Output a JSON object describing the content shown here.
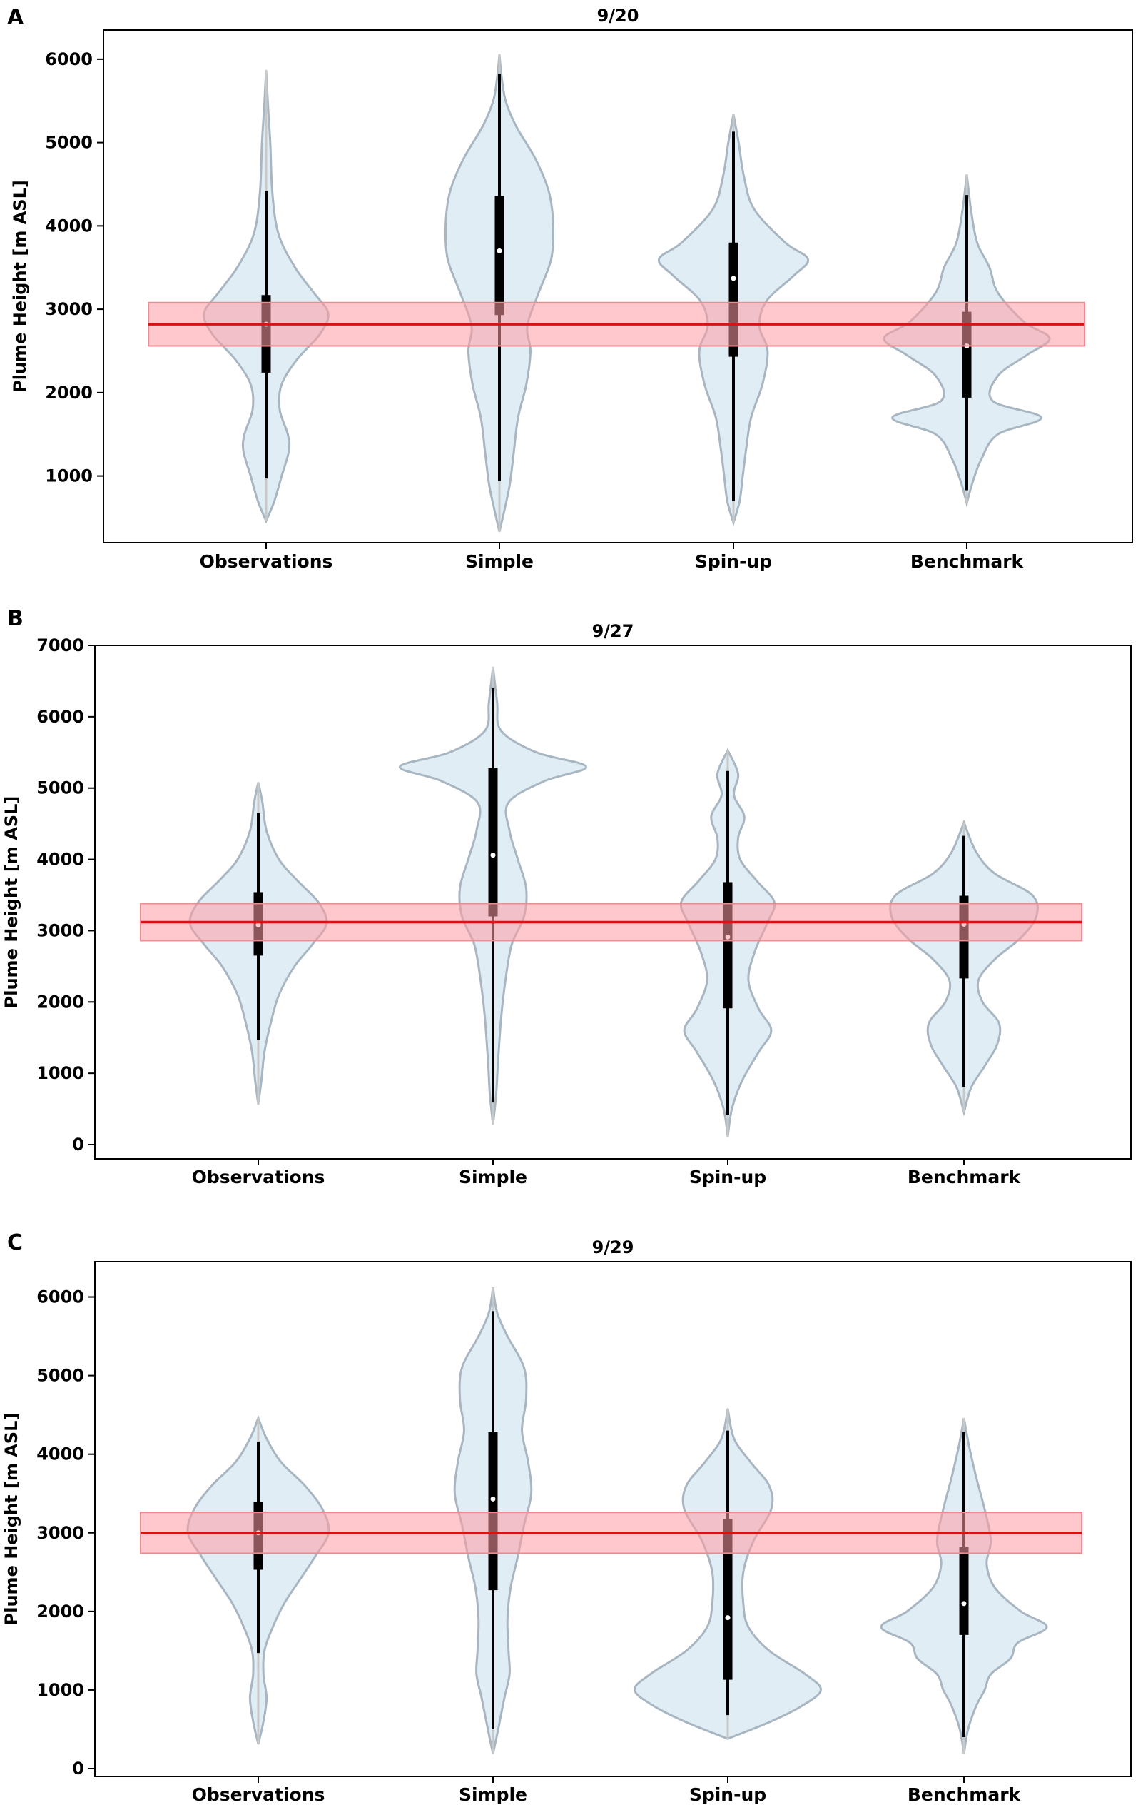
{
  "chart_data": [
    {
      "type": "violin",
      "panel_label": "A",
      "title": "9/20",
      "ylabel": "Plume Height [m ASL]",
      "xlabel": "",
      "ylim": [
        200,
        6350
      ],
      "yticks": [
        1000,
        2000,
        3000,
        4000,
        5000,
        6000
      ],
      "categories": [
        "Observations",
        "Simple",
        "Spin-up",
        "Benchmark"
      ],
      "reference": {
        "value": 2820,
        "band": [
          2560,
          3080
        ],
        "color": "#dd1111",
        "band_color": "#ff9aa2"
      },
      "violins": [
        {
          "name": "Observations",
          "extent": [
            460,
            5870
          ],
          "whisker": [
            970,
            4420
          ],
          "q1": 2240,
          "median": 2820,
          "q3": 3170,
          "density": [
            [
              460,
              0
            ],
            [
              700,
              0.08
            ],
            [
              1000,
              0.15
            ],
            [
              1300,
              0.22
            ],
            [
              1500,
              0.21
            ],
            [
              1800,
              0.13
            ],
            [
              2100,
              0.15
            ],
            [
              2400,
              0.3
            ],
            [
              2700,
              0.52
            ],
            [
              2950,
              0.6
            ],
            [
              3200,
              0.46
            ],
            [
              3500,
              0.28
            ],
            [
              3900,
              0.12
            ],
            [
              4400,
              0.06
            ],
            [
              5000,
              0.04
            ],
            [
              5400,
              0.02
            ],
            [
              5870,
              0
            ]
          ]
        },
        {
          "name": "Simple",
          "extent": [
            330,
            6060
          ],
          "whisker": [
            940,
            5820
          ],
          "q1": 2930,
          "median": 3700,
          "q3": 4360,
          "density": [
            [
              330,
              0
            ],
            [
              600,
              0.05
            ],
            [
              900,
              0.1
            ],
            [
              1300,
              0.14
            ],
            [
              1700,
              0.18
            ],
            [
              2100,
              0.26
            ],
            [
              2500,
              0.3
            ],
            [
              2800,
              0.27
            ],
            [
              3200,
              0.38
            ],
            [
              3600,
              0.5
            ],
            [
              4000,
              0.52
            ],
            [
              4400,
              0.48
            ],
            [
              4800,
              0.35
            ],
            [
              5200,
              0.16
            ],
            [
              5500,
              0.06
            ],
            [
              5800,
              0.02
            ],
            [
              6060,
              0
            ]
          ]
        },
        {
          "name": "Spin-up",
          "extent": [
            440,
            5340
          ],
          "whisker": [
            700,
            5130
          ],
          "q1": 2430,
          "median": 3370,
          "q3": 3800,
          "density": [
            [
              440,
              0
            ],
            [
              700,
              0.06
            ],
            [
              1000,
              0.09
            ],
            [
              1300,
              0.12
            ],
            [
              1700,
              0.17
            ],
            [
              2100,
              0.28
            ],
            [
              2500,
              0.33
            ],
            [
              2800,
              0.25
            ],
            [
              3100,
              0.32
            ],
            [
              3400,
              0.58
            ],
            [
              3600,
              0.72
            ],
            [
              3800,
              0.5
            ],
            [
              4200,
              0.2
            ],
            [
              4600,
              0.1
            ],
            [
              5000,
              0.05
            ],
            [
              5340,
              0
            ]
          ]
        },
        {
          "name": "Benchmark",
          "extent": [
            670,
            4620
          ],
          "whisker": [
            830,
            4370
          ],
          "q1": 1940,
          "median": 2560,
          "q3": 2970,
          "density": [
            [
              670,
              0
            ],
            [
              900,
              0.05
            ],
            [
              1200,
              0.14
            ],
            [
              1500,
              0.3
            ],
            [
              1700,
              0.72
            ],
            [
              1900,
              0.25
            ],
            [
              2200,
              0.3
            ],
            [
              2450,
              0.58
            ],
            [
              2650,
              0.8
            ],
            [
              2850,
              0.55
            ],
            [
              3200,
              0.3
            ],
            [
              3500,
              0.22
            ],
            [
              3800,
              0.1
            ],
            [
              4200,
              0.04
            ],
            [
              4620,
              0
            ]
          ]
        }
      ]
    },
    {
      "type": "violin",
      "panel_label": "B",
      "title": "9/27",
      "ylabel": "Plume Height [m ASL]",
      "xlabel": "",
      "ylim": [
        -200,
        7000
      ],
      "yticks": [
        0,
        1000,
        2000,
        3000,
        4000,
        5000,
        6000,
        7000
      ],
      "categories": [
        "Observations",
        "Simple",
        "Spin-up",
        "Benchmark"
      ],
      "reference": {
        "value": 3120,
        "band": [
          2860,
          3380
        ],
        "color": "#dd1111",
        "band_color": "#ff9aa2"
      },
      "violins": [
        {
          "name": "Observations",
          "extent": [
            560,
            5080
          ],
          "whisker": [
            1470,
            4650
          ],
          "q1": 2650,
          "median": 3080,
          "q3": 3540,
          "density": [
            [
              560,
              0
            ],
            [
              900,
              0.03
            ],
            [
              1300,
              0.06
            ],
            [
              1700,
              0.12
            ],
            [
              2100,
              0.2
            ],
            [
              2500,
              0.35
            ],
            [
              2800,
              0.52
            ],
            [
              3100,
              0.66
            ],
            [
              3400,
              0.58
            ],
            [
              3700,
              0.38
            ],
            [
              4000,
              0.2
            ],
            [
              4400,
              0.08
            ],
            [
              4800,
              0.04
            ],
            [
              5080,
              0
            ]
          ]
        },
        {
          "name": "Simple",
          "extent": [
            280,
            6700
          ],
          "whisker": [
            590,
            6400
          ],
          "q1": 3200,
          "median": 4060,
          "q3": 5280,
          "density": [
            [
              280,
              0
            ],
            [
              700,
              0.03
            ],
            [
              1200,
              0.05
            ],
            [
              1800,
              0.08
            ],
            [
              2300,
              0.12
            ],
            [
              2800,
              0.18
            ],
            [
              3200,
              0.3
            ],
            [
              3600,
              0.32
            ],
            [
              4000,
              0.24
            ],
            [
              4400,
              0.16
            ],
            [
              4800,
              0.15
            ],
            [
              5100,
              0.5
            ],
            [
              5300,
              0.9
            ],
            [
              5500,
              0.42
            ],
            [
              5800,
              0.08
            ],
            [
              6200,
              0.04
            ],
            [
              6700,
              0
            ]
          ]
        },
        {
          "name": "Spin-up",
          "extent": [
            110,
            5530
          ],
          "whisker": [
            420,
            5240
          ],
          "q1": 1910,
          "median": 2910,
          "q3": 3680,
          "density": [
            [
              110,
              0
            ],
            [
              500,
              0.04
            ],
            [
              900,
              0.14
            ],
            [
              1300,
              0.3
            ],
            [
              1600,
              0.42
            ],
            [
              1900,
              0.3
            ],
            [
              2300,
              0.2
            ],
            [
              2700,
              0.26
            ],
            [
              3100,
              0.38
            ],
            [
              3400,
              0.45
            ],
            [
              3700,
              0.28
            ],
            [
              4000,
              0.12
            ],
            [
              4300,
              0.1
            ],
            [
              4600,
              0.16
            ],
            [
              4900,
              0.06
            ],
            [
              5200,
              0.1
            ],
            [
              5530,
              0
            ]
          ]
        },
        {
          "name": "Benchmark",
          "extent": [
            450,
            4520
          ],
          "whisker": [
            810,
            4330
          ],
          "q1": 2330,
          "median": 3090,
          "q3": 3490,
          "density": [
            [
              450,
              0
            ],
            [
              800,
              0.07
            ],
            [
              1100,
              0.2
            ],
            [
              1400,
              0.32
            ],
            [
              1700,
              0.34
            ],
            [
              2000,
              0.18
            ],
            [
              2300,
              0.14
            ],
            [
              2600,
              0.3
            ],
            [
              2900,
              0.55
            ],
            [
              3200,
              0.7
            ],
            [
              3500,
              0.66
            ],
            [
              3800,
              0.3
            ],
            [
              4100,
              0.12
            ],
            [
              4520,
              0
            ]
          ]
        }
      ]
    },
    {
      "type": "violin",
      "panel_label": "C",
      "title": "9/29",
      "ylabel": "Plume Height [m ASL]",
      "xlabel": "",
      "ylim": [
        -100,
        6450
      ],
      "yticks": [
        0,
        1000,
        2000,
        3000,
        4000,
        5000,
        6000
      ],
      "categories": [
        "Observations",
        "Simple",
        "Spin-up",
        "Benchmark"
      ],
      "reference": {
        "value": 3000,
        "band": [
          2740,
          3260
        ],
        "color": "#dd1111",
        "band_color": "#ff9aa2"
      },
      "violins": [
        {
          "name": "Observations",
          "extent": [
            310,
            4460
          ],
          "whisker": [
            1470,
            4160
          ],
          "q1": 2530,
          "median": 3000,
          "q3": 3390,
          "density": [
            [
              310,
              0
            ],
            [
              600,
              0.05
            ],
            [
              900,
              0.08
            ],
            [
              1200,
              0.05
            ],
            [
              1500,
              0.06
            ],
            [
              1800,
              0.14
            ],
            [
              2100,
              0.25
            ],
            [
              2400,
              0.4
            ],
            [
              2700,
              0.55
            ],
            [
              3000,
              0.68
            ],
            [
              3300,
              0.62
            ],
            [
              3600,
              0.45
            ],
            [
              3900,
              0.22
            ],
            [
              4200,
              0.08
            ],
            [
              4460,
              0
            ]
          ]
        },
        {
          "name": "Simple",
          "extent": [
            190,
            6120
          ],
          "whisker": [
            500,
            5820
          ],
          "q1": 2270,
          "median": 3430,
          "q3": 4280,
          "density": [
            [
              190,
              0
            ],
            [
              500,
              0.05
            ],
            [
              900,
              0.11
            ],
            [
              1200,
              0.16
            ],
            [
              1500,
              0.15
            ],
            [
              1900,
              0.14
            ],
            [
              2300,
              0.17
            ],
            [
              2700,
              0.24
            ],
            [
              3100,
              0.3
            ],
            [
              3500,
              0.37
            ],
            [
              3900,
              0.34
            ],
            [
              4300,
              0.28
            ],
            [
              4700,
              0.32
            ],
            [
              5100,
              0.3
            ],
            [
              5500,
              0.14
            ],
            [
              5800,
              0.04
            ],
            [
              6120,
              0
            ]
          ]
        },
        {
          "name": "Spin-up",
          "extent": [
            380,
            4580
          ],
          "whisker": [
            680,
            4300
          ],
          "q1": 1130,
          "median": 1920,
          "q3": 3180,
          "density": [
            [
              380,
              0
            ],
            [
              600,
              0.42
            ],
            [
              800,
              0.72
            ],
            [
              1000,
              0.9
            ],
            [
              1200,
              0.75
            ],
            [
              1500,
              0.4
            ],
            [
              1800,
              0.2
            ],
            [
              2100,
              0.15
            ],
            [
              2500,
              0.15
            ],
            [
              2900,
              0.25
            ],
            [
              3300,
              0.42
            ],
            [
              3600,
              0.4
            ],
            [
              3900,
              0.22
            ],
            [
              4200,
              0.06
            ],
            [
              4580,
              0
            ]
          ]
        },
        {
          "name": "Benchmark",
          "extent": [
            190,
            4460
          ],
          "whisker": [
            400,
            4280
          ],
          "q1": 1700,
          "median": 2100,
          "q3": 2820,
          "density": [
            [
              190,
              0
            ],
            [
              500,
              0.04
            ],
            [
              800,
              0.12
            ],
            [
              1000,
              0.2
            ],
            [
              1200,
              0.26
            ],
            [
              1400,
              0.45
            ],
            [
              1600,
              0.52
            ],
            [
              1800,
              0.8
            ],
            [
              2000,
              0.55
            ],
            [
              2300,
              0.3
            ],
            [
              2600,
              0.22
            ],
            [
              2900,
              0.26
            ],
            [
              3300,
              0.2
            ],
            [
              3700,
              0.12
            ],
            [
              4100,
              0.05
            ],
            [
              4460,
              0
            ]
          ]
        }
      ]
    }
  ]
}
